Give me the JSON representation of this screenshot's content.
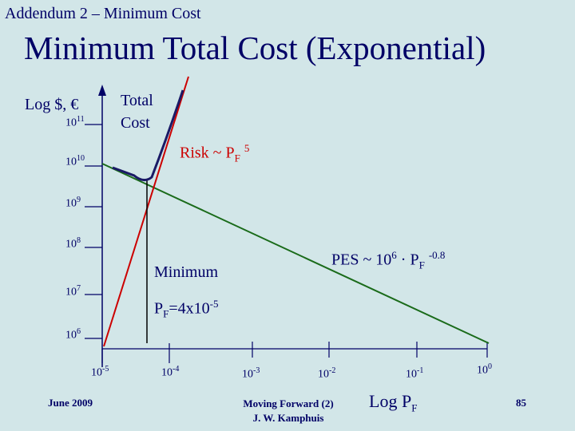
{
  "header": {
    "addendum": "Addendum 2 – Minimum Cost",
    "title": "Minimum Total Cost (Exponential)"
  },
  "y_axis": {
    "label": "Log $, €",
    "ticks": [
      {
        "base": "10",
        "exp": "11"
      },
      {
        "base": "10",
        "exp": "10"
      },
      {
        "base": "10",
        "exp": "9"
      },
      {
        "base": "10",
        "exp": "8"
      },
      {
        "base": "10",
        "exp": "7"
      },
      {
        "base": "10",
        "exp": "6"
      }
    ]
  },
  "x_axis": {
    "label": {
      "main": "Log P",
      "sub": "F"
    },
    "ticks": [
      {
        "base": "10",
        "exp": "-5"
      },
      {
        "base": "10",
        "exp": "-4"
      },
      {
        "base": "10",
        "exp": "-3"
      },
      {
        "base": "10",
        "exp": "-2"
      },
      {
        "base": "10",
        "exp": "-1"
      },
      {
        "base": "10",
        "exp": "0"
      }
    ]
  },
  "annotations": {
    "total_cost": [
      "Total",
      "Cost"
    ],
    "risk": {
      "text": "Risk ~ P",
      "sub": "F",
      "exp": "5"
    },
    "pes": {
      "text": "PES ~ 10",
      "exp1": "6",
      "mid": " · P",
      "sub": "F",
      "exp2": "-0.8"
    },
    "minimum": "Minimum",
    "pf": {
      "pre": "P",
      "sub": "F",
      "mid": "=4x10",
      "exp": "-5"
    }
  },
  "footer": {
    "date": "June 2009",
    "event": "Moving Forward (2)",
    "author": "J. W. Kamphuis",
    "page": "85"
  },
  "colors": {
    "text": "#000066",
    "risk_line": "#cc0000",
    "pes_line": "#1a6b1a",
    "total_cost_line": "#1a1a66",
    "background": "#d2e6e8"
  }
}
